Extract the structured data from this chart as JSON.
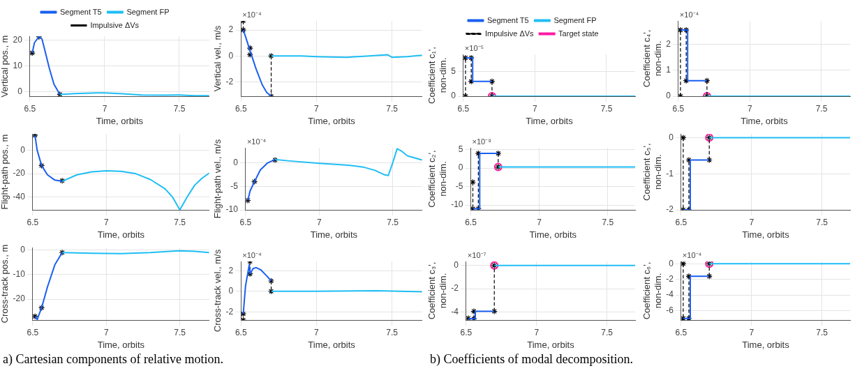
{
  "chart_data": [
    {
      "type": "line",
      "xlabel": "Time, orbits",
      "ylabel": "Vertical pos., m",
      "xlim": [
        6.5,
        7.7
      ],
      "xticks": [
        6.5,
        7,
        7.5
      ],
      "ylim": [
        -1.7,
        21.5
      ],
      "yticks": [
        0,
        10,
        20
      ],
      "grid": true,
      "legend": "top",
      "series": [
        {
          "name": "Segment T5",
          "color": "#1a5ff0",
          "x": [
            6.515,
            6.53,
            6.56,
            6.58,
            6.6,
            6.63,
            6.66,
            6.7
          ],
          "values": [
            15,
            19,
            21.3,
            20.5,
            16,
            9,
            3,
            -1
          ]
        },
        {
          "name": "Segment FP",
          "color": "#1fbef5",
          "x": [
            6.7,
            6.8,
            6.95,
            7.0,
            7.1,
            7.25,
            7.4,
            7.5,
            7.6,
            7.7
          ],
          "values": [
            -1,
            -0.7,
            -0.4,
            -0.4,
            -0.7,
            -1.2,
            -1.3,
            -1.2,
            -1.5,
            -1.5
          ]
        },
        {
          "name": "Impulsive ΔVs",
          "type": "scatter",
          "color": "#000000",
          "marker": "cross",
          "x": [
            6.515,
            6.56,
            6.7
          ],
          "values": [
            15,
            21.3,
            -1
          ]
        }
      ]
    },
    {
      "type": "line",
      "subtitle": "×10⁻⁴",
      "xlabel": "Time, orbits",
      "ylabel": "Vertical vel., m/s",
      "xlim": [
        6.5,
        7.7
      ],
      "xticks": [
        6.5,
        7,
        7.5
      ],
      "ylim": [
        -3.1,
        2.7
      ],
      "yticks": [
        -2,
        0,
        2
      ],
      "grid": true,
      "series": [
        {
          "color": "#1a5ff0",
          "x": [
            6.515,
            6.53,
            6.56,
            6.6,
            6.64,
            6.67,
            6.7
          ],
          "values": [
            2.0,
            1.5,
            0.4,
            -1.0,
            -2.2,
            -2.8,
            -3.1
          ]
        },
        {
          "color": "#1fbef5",
          "x": [
            6.7,
            6.9,
            7.0,
            7.2,
            7.35,
            7.47,
            7.5,
            7.6,
            7.7
          ],
          "values": [
            0,
            0,
            -0.05,
            -0.1,
            0,
            0.1,
            -0.1,
            -0.05,
            0.05
          ]
        },
        {
          "color": "#000000",
          "line_style": "dashed",
          "marker": "cross",
          "x": [
            6.515,
            6.515,
            6.535,
            6.56,
            6.56,
            6.63,
            6.7,
            6.7
          ],
          "values": [
            2.7,
            2.0,
            null,
            0.6,
            0.1,
            null,
            0,
            -3.1
          ]
        }
      ]
    },
    {
      "type": "line",
      "xlabel": "Time, orbits",
      "ylabel": "Flight-path pos., m",
      "xlim": [
        6.5,
        7.7
      ],
      "xticks": [
        6.5,
        7,
        7.5
      ],
      "ylim": [
        -51,
        14
      ],
      "yticks": [
        -40,
        -20,
        0
      ],
      "grid": true,
      "series": [
        {
          "color": "#1a5ff0",
          "x": [
            6.515,
            6.53,
            6.56,
            6.6,
            6.65,
            6.7
          ],
          "values": [
            13,
            0,
            -13,
            -21,
            -25.5,
            -26.5
          ]
        },
        {
          "color": "#1fbef5",
          "x": [
            6.7,
            6.8,
            6.9,
            7.0,
            7.1,
            7.2,
            7.3,
            7.4,
            7.45,
            7.5,
            7.55,
            7.6,
            7.65,
            7.7
          ],
          "values": [
            -26.5,
            -21,
            -18.5,
            -17.5,
            -18,
            -20,
            -25,
            -33,
            -40,
            -51,
            -40,
            -30,
            -24,
            -19.5
          ]
        },
        {
          "type": "scatter",
          "color": "#000000",
          "marker": "cross",
          "x": [
            6.515,
            6.56,
            6.7
          ],
          "values": [
            13,
            -13,
            -26
          ]
        }
      ]
    },
    {
      "type": "line",
      "subtitle": "×10⁻⁴",
      "xlabel": "Time, orbits",
      "ylabel": "Flight-path vel., m/s",
      "xlim": [
        6.5,
        7.7
      ],
      "xticks": [
        6.5,
        7,
        7.5
      ],
      "ylim": [
        -10,
        3.2
      ],
      "yticks": [
        -10,
        -5,
        0
      ],
      "grid": true,
      "series": [
        {
          "color": "#1a5ff0",
          "x": [
            6.515,
            6.53,
            6.56,
            6.6,
            6.65,
            6.7
          ],
          "values": [
            -8,
            -6,
            -4,
            -1.5,
            0,
            0.7
          ]
        },
        {
          "color": "#1fbef5",
          "x": [
            6.7,
            6.8,
            7.0,
            7.2,
            7.3,
            7.38,
            7.44,
            7.47,
            7.5,
            7.53,
            7.56,
            7.6,
            7.7
          ],
          "values": [
            0.7,
            0.4,
            -0.1,
            -0.5,
            -0.9,
            -1.6,
            -2.5,
            -2.7,
            0,
            3.0,
            2.5,
            1.5,
            0.6
          ]
        },
        {
          "type": "scatter",
          "color": "#000000",
          "marker": "cross",
          "x": [
            6.515,
            6.56,
            6.7
          ],
          "values": [
            -8,
            -4,
            0.6
          ]
        }
      ]
    },
    {
      "type": "line",
      "xlabel": "Time, orbits",
      "ylabel": "Cross-track pos., m",
      "xlim": [
        6.5,
        7.7
      ],
      "xticks": [
        6.5,
        7,
        7.5
      ],
      "ylim": [
        -28.5,
        1
      ],
      "yticks": [
        -20,
        -10,
        0
      ],
      "grid": true,
      "annotations": [
        "a) Cartesian components of relative motion."
      ],
      "series": [
        {
          "color": "#1a5ff0",
          "x": [
            6.515,
            6.53,
            6.56,
            6.6,
            6.65,
            6.7
          ],
          "values": [
            -27,
            -28.3,
            -23.5,
            -15,
            -6,
            -1
          ]
        },
        {
          "color": "#1fbef5",
          "x": [
            6.7,
            6.9,
            7.1,
            7.3,
            7.5,
            7.6,
            7.7
          ],
          "values": [
            -1,
            -1.3,
            -1.4,
            -1,
            -0.3,
            -0.5,
            -1
          ]
        },
        {
          "type": "scatter",
          "color": "#000000",
          "marker": "cross",
          "x": [
            6.515,
            6.56,
            6.7
          ],
          "values": [
            -27,
            -23.5,
            -1
          ]
        }
      ]
    },
    {
      "type": "line",
      "subtitle": "×10⁻⁴",
      "xlabel": "Time, orbits",
      "ylabel": "Cross-track vel., m/s",
      "xlim": [
        6.5,
        7.7
      ],
      "xticks": [
        6.5,
        7,
        7.5
      ],
      "ylim": [
        -2.8,
        2.9
      ],
      "yticks": [
        -2,
        0,
        2
      ],
      "grid": true,
      "series": [
        {
          "color": "#1a5ff0",
          "x": [
            6.515,
            6.53,
            6.555,
            6.56,
            6.58,
            6.6,
            6.63,
            6.67,
            6.7
          ],
          "values": [
            -2.2,
            0.5,
            2.6,
            1.7,
            2.2,
            2.3,
            2.1,
            1.5,
            1.0
          ]
        },
        {
          "color": "#1fbef5",
          "x": [
            6.7,
            7.0,
            7.4,
            7.55,
            7.7
          ],
          "values": [
            0,
            0,
            0.05,
            0,
            -0.05
          ]
        },
        {
          "color": "#000000",
          "line_style": "dashed",
          "marker": "cross",
          "x": [
            6.515,
            6.535,
            6.56,
            6.56,
            6.63,
            6.7,
            6.7,
            6.6,
            6.515
          ],
          "values": [
            -2.2,
            null,
            2.9,
            1.7,
            null,
            1.0,
            0,
            null,
            -2.8
          ]
        }
      ]
    },
    {
      "type": "line",
      "subtitle": "×10⁻⁵",
      "xlabel": "Time, orbits",
      "ylabel": "Coefficient c₁',\nnon-dim.",
      "xlim": [
        6.5,
        7.7
      ],
      "xticks": [
        6.5,
        7,
        7.5
      ],
      "ylim": [
        0,
        8.5
      ],
      "yticks": [
        0,
        5
      ],
      "grid": true,
      "legend": "top",
      "series": [
        {
          "name": "Segment T5",
          "color": "#1a5ff0",
          "x": [
            6.515,
            6.565,
            6.565,
            6.7
          ],
          "values": [
            7.8,
            7.8,
            3.0,
            3.0
          ]
        },
        {
          "name": "Segment FP",
          "color": "#1fbef5",
          "x": [
            6.7,
            7.7
          ],
          "values": [
            0,
            0
          ]
        },
        {
          "name": "Impulsive ΔVs",
          "color": "#000000",
          "line_style": "dashed",
          "marker": "cross",
          "x": [
            6.515,
            6.515,
            6.535,
            6.555,
            6.555,
            6.63,
            6.7,
            6.7
          ],
          "values": [
            0,
            7.8,
            null,
            7.8,
            3.0,
            null,
            3.0,
            0
          ]
        },
        {
          "name": "Target state",
          "type": "scatter",
          "color": "#ff1aa0",
          "marker": "circle",
          "x": [
            6.7
          ],
          "values": [
            0
          ]
        }
      ]
    },
    {
      "type": "line",
      "subtitle": "×10⁻⁴",
      "xlabel": "Time, orbits",
      "ylabel": "Coefficient c₄',\nnon-dim.",
      "xlim": [
        6.5,
        7.7
      ],
      "xticks": [
        6.5,
        7,
        7.5
      ],
      "ylim": [
        0,
        2.9
      ],
      "yticks": [
        0,
        1,
        2
      ],
      "grid": true,
      "series": [
        {
          "color": "#1a5ff0",
          "x": [
            6.515,
            6.565,
            6.565,
            6.7
          ],
          "values": [
            2.55,
            2.55,
            0.6,
            0.6
          ]
        },
        {
          "color": "#1fbef5",
          "x": [
            6.7,
            7.7
          ],
          "values": [
            0,
            0
          ]
        },
        {
          "color": "#000000",
          "line_style": "dashed",
          "marker": "cross",
          "x": [
            6.515,
            6.515,
            6.535,
            6.555,
            6.555,
            6.63,
            6.7,
            6.7
          ],
          "values": [
            0,
            2.55,
            null,
            2.55,
            0.6,
            null,
            0.6,
            0
          ]
        },
        {
          "type": "scatter",
          "color": "#ff1aa0",
          "marker": "circle",
          "x": [
            6.7
          ],
          "values": [
            0
          ]
        }
      ]
    },
    {
      "type": "line",
      "subtitle": "×10⁻⁹",
      "xlabel": "Time, orbits",
      "ylabel": "Coefficient c₂',\nnon-dim.",
      "xlim": [
        6.5,
        7.7
      ],
      "xticks": [
        6.5,
        7,
        7.5
      ],
      "ylim": [
        -11.3,
        5.5
      ],
      "yticks": [
        -10,
        -5,
        0,
        5
      ],
      "grid": true,
      "series": [
        {
          "color": "#1a5ff0",
          "x": [
            6.515,
            6.565,
            6.565,
            6.7
          ],
          "values": [
            -11,
            -11,
            4,
            4
          ]
        },
        {
          "color": "#1fbef5",
          "x": [
            6.7,
            7.7
          ],
          "values": [
            0.3,
            0.3
          ]
        },
        {
          "color": "#000000",
          "line_style": "dashed",
          "marker": "cross",
          "x": [
            6.515,
            6.515,
            6.535,
            6.555,
            6.555,
            6.63,
            6.7,
            6.7
          ],
          "values": [
            -3.8,
            -11,
            null,
            -11,
            4,
            null,
            4,
            0.3
          ]
        },
        {
          "type": "scatter",
          "color": "#ff1aa0",
          "marker": "circle",
          "x": [
            6.7
          ],
          "values": [
            0.3
          ]
        }
      ]
    },
    {
      "type": "line",
      "xlabel": "Time, orbits",
      "ylabel": "Coefficient c₅',\nnon-dim.",
      "xlim": [
        6.5,
        7.7
      ],
      "xticks": [
        6.5,
        7,
        7.5
      ],
      "ylim": [
        -2,
        0.1
      ],
      "yticks": [
        -2,
        -1,
        0
      ],
      "grid": true,
      "series": [
        {
          "color": "#1a5ff0",
          "x": [
            6.515,
            6.565,
            6.565,
            6.7
          ],
          "values": [
            -2,
            -2,
            -0.62,
            -0.62
          ]
        },
        {
          "color": "#1fbef5",
          "x": [
            6.7,
            7.7
          ],
          "values": [
            0,
            0
          ]
        },
        {
          "color": "#000000",
          "line_style": "dashed",
          "marker": "cross",
          "x": [
            6.515,
            6.515,
            6.535,
            6.555,
            6.555,
            6.63,
            6.7,
            6.7
          ],
          "values": [
            0,
            -2,
            null,
            -2,
            -0.62,
            null,
            -0.62,
            0
          ]
        },
        {
          "type": "scatter",
          "color": "#ff1aa0",
          "marker": "circle",
          "x": [
            6.7
          ],
          "values": [
            0
          ]
        }
      ]
    },
    {
      "type": "line",
      "subtitle": "×10⁻⁷",
      "xlabel": "Time, orbits",
      "ylabel": "Coefficient c₃',\nnon-dim.",
      "xlim": [
        6.5,
        7.7
      ],
      "xticks": [
        6.5,
        7,
        7.5
      ],
      "ylim": [
        -4.7,
        0.35
      ],
      "yticks": [
        -4,
        -2,
        0
      ],
      "grid": true,
      "annotations": [
        "b) Coefficients of modal decomposition."
      ],
      "series": [
        {
          "color": "#1a5ff0",
          "x": [
            6.515,
            6.565,
            6.565,
            6.7
          ],
          "values": [
            -4.6,
            -4.6,
            -3.95,
            -3.95
          ]
        },
        {
          "color": "#1fbef5",
          "x": [
            6.7,
            7.7
          ],
          "values": [
            0,
            0
          ]
        },
        {
          "color": "#000000",
          "line_style": "dashed",
          "marker": "cross",
          "x": [
            6.515,
            6.535,
            6.555,
            6.555,
            6.63,
            6.7,
            6.7
          ],
          "values": [
            -4.55,
            null,
            -4.6,
            -3.95,
            null,
            -3.95,
            0
          ]
        },
        {
          "type": "scatter",
          "color": "#ff1aa0",
          "marker": "circle",
          "x": [
            6.7
          ],
          "values": [
            0
          ]
        }
      ]
    },
    {
      "type": "line",
      "subtitle": "×10⁻⁴",
      "xlabel": "Time, orbits",
      "ylabel": "Coefficient c₆',\nnon-dim.",
      "xlim": [
        6.5,
        7.7
      ],
      "xticks": [
        6.5,
        7,
        7.5
      ],
      "ylim": [
        -7.2,
        0.3
      ],
      "yticks": [
        -6,
        -4,
        -2,
        0
      ],
      "grid": true,
      "series": [
        {
          "color": "#1a5ff0",
          "x": [
            6.515,
            6.565,
            6.565,
            6.7
          ],
          "values": [
            -7,
            -7,
            -1.6,
            -1.6
          ]
        },
        {
          "color": "#1fbef5",
          "x": [
            6.7,
            7.7
          ],
          "values": [
            0,
            0
          ]
        },
        {
          "color": "#000000",
          "line_style": "dashed",
          "marker": "cross",
          "x": [
            6.515,
            6.515,
            6.535,
            6.555,
            6.555,
            6.63,
            6.7,
            6.7
          ],
          "values": [
            0,
            -7,
            null,
            -7,
            -1.6,
            null,
            -1.6,
            0
          ]
        },
        {
          "type": "scatter",
          "color": "#ff1aa0",
          "marker": "circle",
          "x": [
            6.7
          ],
          "values": [
            0
          ]
        }
      ]
    }
  ]
}
